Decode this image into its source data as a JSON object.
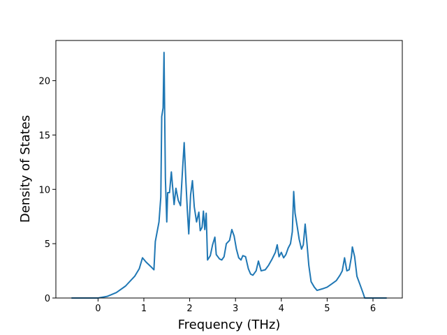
{
  "chart_data": {
    "type": "line",
    "xlabel": "Frequency (THz)",
    "ylabel": "Density of States",
    "xlim": [
      -0.92,
      6.64
    ],
    "ylim": [
      0,
      23.7
    ],
    "xticks": [
      0,
      1,
      2,
      3,
      4,
      5,
      6
    ],
    "yticks": [
      0,
      5,
      10,
      15,
      20
    ],
    "grid": false,
    "series": [
      {
        "color": "#1f77b4",
        "x": [
          -0.58,
          0,
          0.2,
          0.4,
          0.6,
          0.8,
          0.9,
          0.97,
          1.05,
          1.15,
          1.22,
          1.25,
          1.33,
          1.37,
          1.39,
          1.42,
          1.44,
          1.47,
          1.5,
          1.52,
          1.56,
          1.6,
          1.66,
          1.7,
          1.75,
          1.8,
          1.84,
          1.88,
          1.92,
          1.95,
          1.98,
          2.02,
          2.06,
          2.1,
          2.15,
          2.2,
          2.23,
          2.27,
          2.3,
          2.33,
          2.36,
          2.39,
          2.45,
          2.5,
          2.55,
          2.58,
          2.65,
          2.7,
          2.75,
          2.8,
          2.87,
          2.92,
          2.97,
          3.02,
          3.07,
          3.12,
          3.16,
          3.22,
          3.28,
          3.33,
          3.38,
          3.45,
          3.5,
          3.56,
          3.65,
          3.72,
          3.8,
          3.87,
          3.91,
          3.95,
          4.0,
          4.05,
          4.1,
          4.15,
          4.2,
          4.24,
          4.27,
          4.3,
          4.35,
          4.39,
          4.44,
          4.48,
          4.52,
          4.56,
          4.6,
          4.65,
          4.72,
          4.78,
          4.9,
          5.0,
          5.1,
          5.2,
          5.28,
          5.33,
          5.38,
          5.43,
          5.48,
          5.53,
          5.55,
          5.6,
          5.65,
          5.72,
          5.78,
          5.82,
          6.3
        ],
        "values": [
          0,
          0,
          0.15,
          0.5,
          1.1,
          2.0,
          2.7,
          3.7,
          3.3,
          2.9,
          2.6,
          5.2,
          7.0,
          9.3,
          16.7,
          17.5,
          22.6,
          11,
          7.0,
          9.7,
          9.7,
          11.6,
          8.6,
          10.1,
          9.0,
          8.5,
          11.5,
          14.3,
          10.5,
          8.0,
          5.9,
          9.5,
          10.8,
          8.4,
          7.0,
          7.9,
          6.2,
          6.5,
          8.0,
          6.3,
          7.8,
          3.5,
          3.9,
          4.9,
          5.6,
          4.0,
          3.6,
          3.5,
          3.8,
          5.0,
          5.3,
          6.3,
          5.7,
          4.5,
          3.7,
          3.5,
          3.9,
          3.8,
          2.7,
          2.2,
          2.1,
          2.5,
          3.4,
          2.5,
          2.6,
          3.0,
          3.6,
          4.2,
          4.9,
          3.8,
          4.2,
          3.7,
          4.0,
          4.6,
          5.0,
          6.1,
          9.8,
          7.8,
          6.5,
          5.4,
          4.5,
          4.9,
          6.8,
          5.0,
          3.0,
          1.5,
          1.0,
          0.7,
          0.85,
          1.0,
          1.3,
          1.6,
          2.1,
          2.5,
          3.7,
          2.5,
          2.6,
          3.8,
          4.7,
          3.8,
          2.0,
          1.2,
          0.5,
          0,
          0
        ]
      }
    ]
  }
}
